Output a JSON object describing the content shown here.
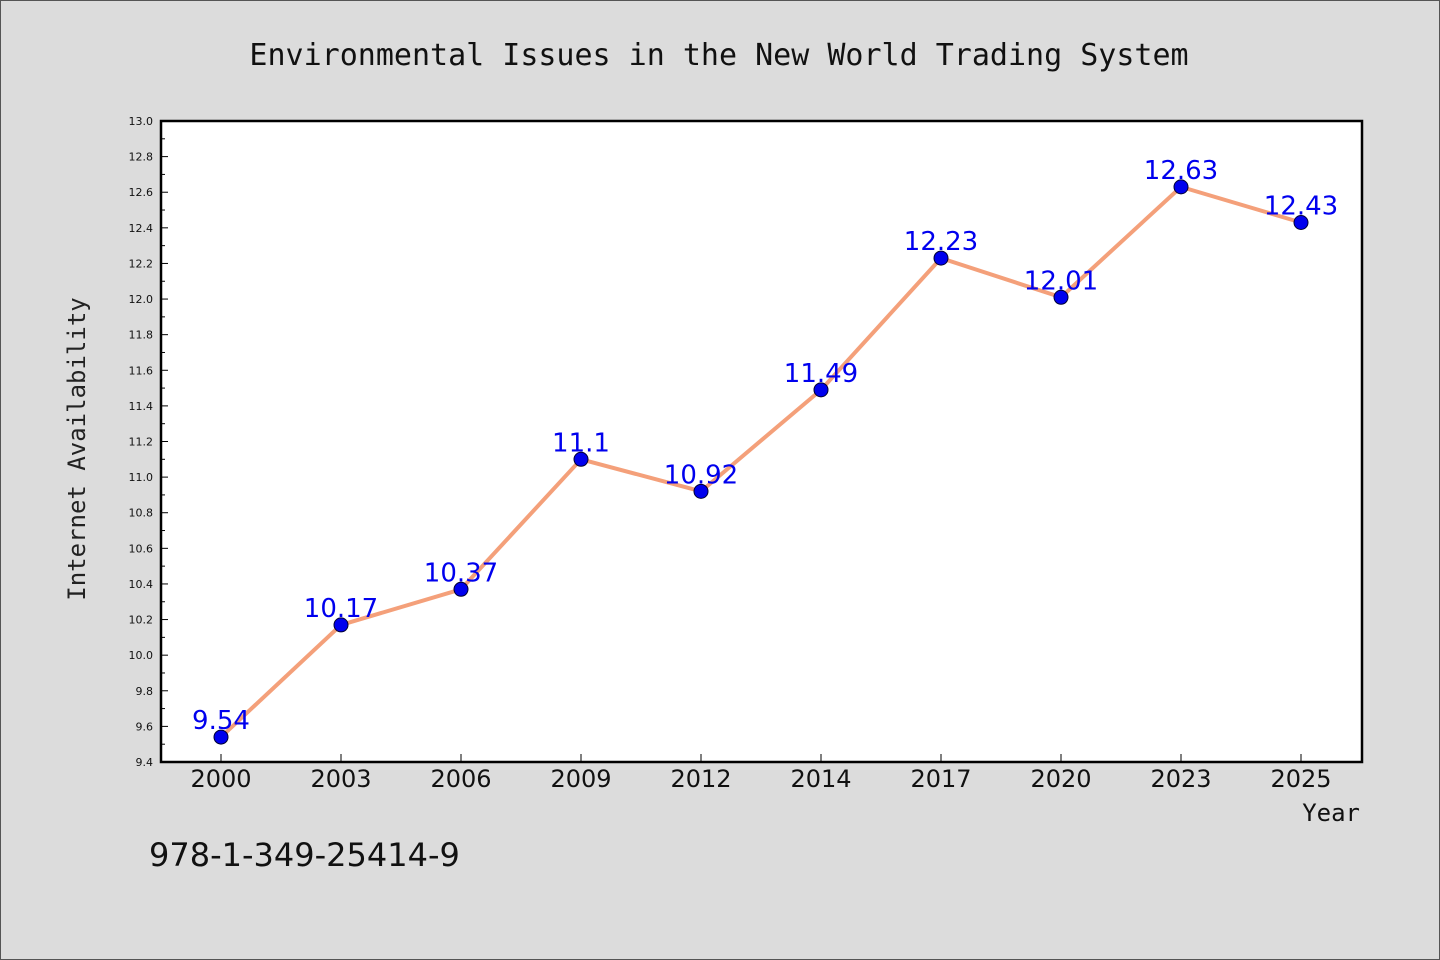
{
  "chart_data": {
    "type": "line",
    "title": "Environmental Issues in the New World Trading System",
    "xlabel": "Year",
    "ylabel": "Internet Availability",
    "categories": [
      "2000",
      "2003",
      "2006",
      "2009",
      "2012",
      "2014",
      "2017",
      "2020",
      "2023",
      "2025"
    ],
    "series": [
      {
        "values": [
          9.54,
          10.17,
          10.37,
          11.1,
          10.92,
          11.49,
          12.23,
          12.01,
          12.63,
          12.43
        ],
        "labels": [
          "9.54",
          "10.17",
          "10.37",
          "11.1",
          "10.92",
          "11.49",
          "12.23",
          "12.01",
          "12.63",
          "12.43"
        ],
        "line_color": "#f4a07a",
        "marker_color": "#0000ee",
        "label_color": "#0000ee"
      }
    ],
    "ylim": [
      9.4,
      13.0
    ],
    "yticks": [
      "9.4",
      "9.6",
      "9.8",
      "10.0",
      "10.2",
      "10.4",
      "10.6",
      "10.8",
      "11.0",
      "11.2",
      "11.4",
      "11.6",
      "11.8",
      "12.0",
      "12.2",
      "12.4",
      "12.6",
      "12.8",
      "13.0"
    ],
    "grid": false,
    "legend": "none"
  },
  "footer": {
    "isbn": "978-1-349-25414-9"
  },
  "colors": {
    "background": "#dcdcdc",
    "plot_background": "#ffffff"
  }
}
